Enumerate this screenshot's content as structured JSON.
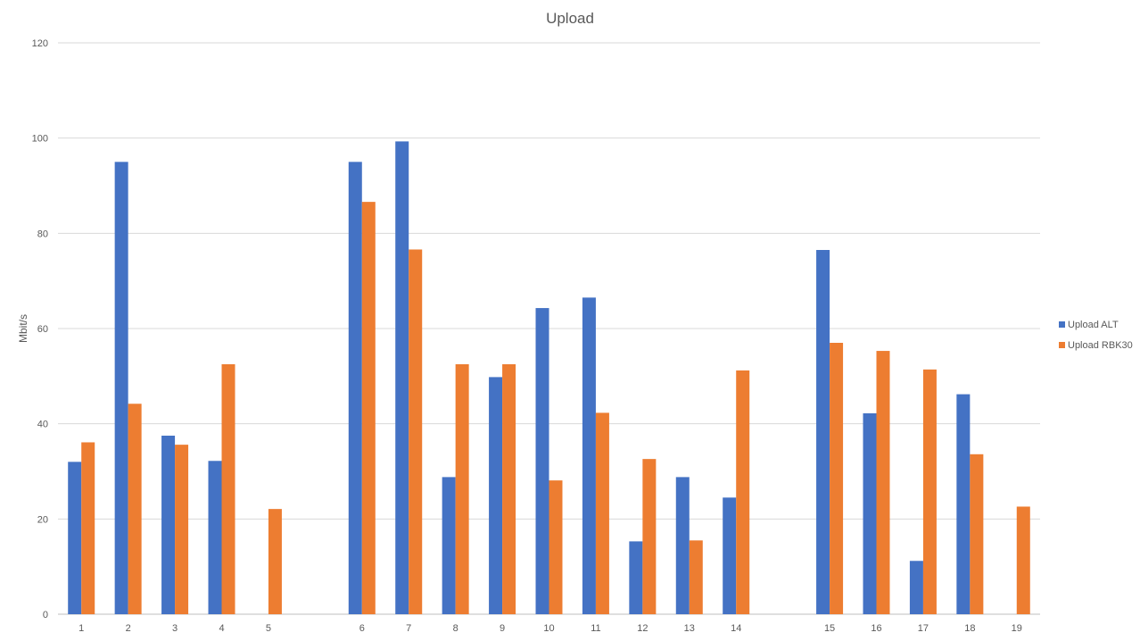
{
  "chart_data": {
    "type": "bar",
    "title": "Upload",
    "xlabel": "",
    "ylabel": "Mbit/s",
    "ylim": [
      0,
      120
    ],
    "yticks": [
      0,
      20,
      40,
      60,
      80,
      100,
      120
    ],
    "grid": true,
    "legend_position": "right",
    "categories": [
      "1",
      "2",
      "3",
      "4",
      "5",
      "",
      "6",
      "7",
      "8",
      "9",
      "10",
      "11",
      "12",
      "13",
      "14",
      "",
      "15",
      "16",
      "17",
      "18",
      "19"
    ],
    "series": [
      {
        "name": "Upload ALT",
        "color": "#4472C4",
        "values": [
          32,
          95,
          37.5,
          32.2,
          null,
          null,
          95,
          99.3,
          28.8,
          49.8,
          64.3,
          66.5,
          15.3,
          28.8,
          24.5,
          null,
          76.5,
          42.2,
          11.2,
          46.2,
          null
        ]
      },
      {
        "name": "Upload RBK30",
        "color": "#ED7D31",
        "values": [
          36.1,
          44.2,
          35.6,
          52.5,
          22.1,
          null,
          86.6,
          76.6,
          52.5,
          52.5,
          28.1,
          42.3,
          32.6,
          15.5,
          51.2,
          null,
          57,
          55.3,
          51.4,
          33.6,
          22.6
        ]
      }
    ]
  }
}
